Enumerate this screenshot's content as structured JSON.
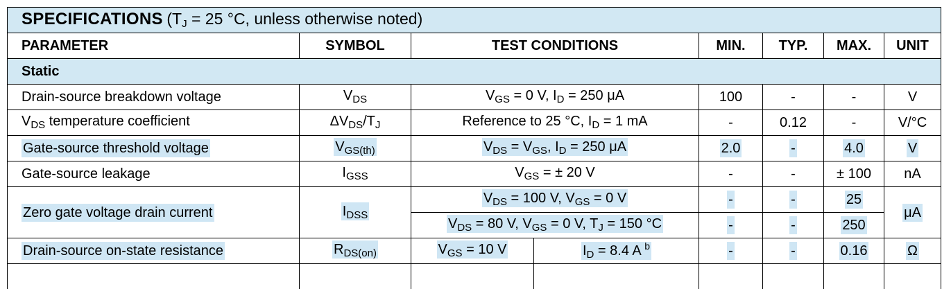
{
  "title": {
    "main": "SPECIFICATIONS",
    "condition": "(T",
    "cond_sub": "J",
    "cond_rest": " = 25 °C, unless otherwise noted)"
  },
  "headers": {
    "parameter": "PARAMETER",
    "symbol": "SYMBOL",
    "test_conditions": "TEST CONDITIONS",
    "min": "MIN.",
    "typ": "TYP.",
    "max": "MAX.",
    "unit": "UNIT"
  },
  "section": "Static",
  "rows": {
    "r1": {
      "param": "Drain-source breakdown voltage",
      "sym": "V",
      "sym_sub": "DS",
      "tc_a": "V",
      "tc_a_sub": "GS",
      "tc_b": " = 0 V, I",
      "tc_b_sub": "D",
      "tc_c": " = 250 μA",
      "min": "100",
      "typ": "-",
      "max": "-",
      "unit": "V"
    },
    "r2": {
      "param_a": "V",
      "param_sub": "DS",
      "param_b": " temperature coefficient",
      "sym_a": "ΔV",
      "sym_sub": "DS",
      "sym_b": "/T",
      "sym_sub2": "J",
      "tc_a": "Reference to 25 °C, I",
      "tc_sub": "D",
      "tc_b": " = 1 mA",
      "min": "-",
      "typ": "0.12",
      "max": "-",
      "unit": "V/°C"
    },
    "r3": {
      "param": "Gate-source threshold voltage",
      "sym": "V",
      "sym_sub": "GS(th)",
      "tc_a": "V",
      "tc_a_sub": "DS",
      "tc_b": " = V",
      "tc_b_sub": "GS",
      "tc_c": ", I",
      "tc_c_sub": "D",
      "tc_d": " = 250 μA",
      "min": "2.0",
      "typ": "-",
      "max": "4.0",
      "unit": "V"
    },
    "r4": {
      "param": "Gate-source leakage",
      "sym": "I",
      "sym_sub": "GSS",
      "tc_a": "V",
      "tc_a_sub": "GS",
      "tc_b": " = ± 20 V",
      "min": "-",
      "typ": "-",
      "max": "± 100",
      "unit": "nA"
    },
    "r5": {
      "param": "Zero gate voltage drain current",
      "sym": "I",
      "sym_sub": "DSS",
      "tc1_a": "V",
      "tc1_a_sub": "DS",
      "tc1_b": " = 100 V, V",
      "tc1_b_sub": "GS",
      "tc1_c": " = 0 V",
      "min1": "-",
      "typ1": "-",
      "max1": "25",
      "tc2_a": "V",
      "tc2_a_sub": "DS",
      "tc2_b": " = 80 V, V",
      "tc2_b_sub": "GS",
      "tc2_c": " = 0 V, T",
      "tc2_c_sub": "J",
      "tc2_d": " = 150 °C",
      "min2": "-",
      "typ2": "-",
      "max2": "250",
      "unit": "μA"
    },
    "r6": {
      "param": "Drain-source on-state resistance",
      "sym": "R",
      "sym_sub": "DS(on)",
      "tcl_a": "V",
      "tcl_a_sub": "GS",
      "tcl_b": " = 10 V",
      "tcr_a": "I",
      "tcr_a_sub": "D",
      "tcr_b": " = 8.4 A ",
      "tcr_sup": "b",
      "min": "-",
      "typ": "-",
      "max": "0.16",
      "unit": "Ω"
    }
  }
}
